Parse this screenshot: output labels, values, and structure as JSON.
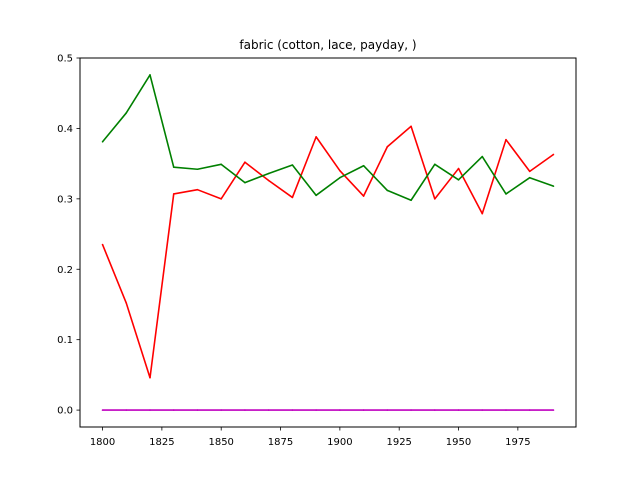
{
  "chart_data": {
    "type": "line",
    "title": "fabric (cotton, lace, payday, )",
    "xlabel": "",
    "ylabel": "",
    "x": [
      1800,
      1810,
      1820,
      1830,
      1840,
      1850,
      1860,
      1870,
      1880,
      1890,
      1900,
      1910,
      1920,
      1930,
      1940,
      1950,
      1960,
      1970,
      1980,
      1990
    ],
    "xlim": [
      1790.5,
      1999.5
    ],
    "ylim": [
      -0.024,
      0.5
    ],
    "xticks": [
      1800,
      1825,
      1850,
      1875,
      1900,
      1925,
      1950,
      1975
    ],
    "yticks": [
      0.0,
      0.1,
      0.2,
      0.3,
      0.4,
      0.5
    ],
    "xtick_labels": [
      "1800",
      "1825",
      "1850",
      "1875",
      "1900",
      "1925",
      "1950",
      "1975"
    ],
    "ytick_labels": [
      "0.0",
      "0.1",
      "0.2",
      "0.3",
      "0.4",
      "0.5"
    ],
    "grid": false,
    "legend": "none",
    "series": [
      {
        "color": "#ff0000",
        "values": [
          0.235,
          0.152,
          0.046,
          0.307,
          0.313,
          0.3,
          0.352,
          0.326,
          0.302,
          0.388,
          0.34,
          0.304,
          0.374,
          0.403,
          0.3,
          0.343,
          0.279,
          0.384,
          0.339,
          0.363
        ]
      },
      {
        "color": "#008000",
        "values": [
          0.381,
          0.422,
          0.476,
          0.345,
          0.342,
          0.349,
          0.323,
          0.336,
          0.348,
          0.305,
          0.33,
          0.347,
          0.312,
          0.298,
          0.349,
          0.327,
          0.36,
          0.307,
          0.33,
          0.318
        ]
      },
      {
        "color": "#bf00bf",
        "values": [
          0.0,
          0.0,
          0.0,
          0.0,
          0.0,
          0.0,
          0.0,
          0.0,
          0.0,
          0.0,
          0.0,
          0.0,
          0.0,
          0.0,
          0.0,
          0.0,
          0.0,
          0.0,
          0.0,
          0.0
        ]
      }
    ]
  }
}
